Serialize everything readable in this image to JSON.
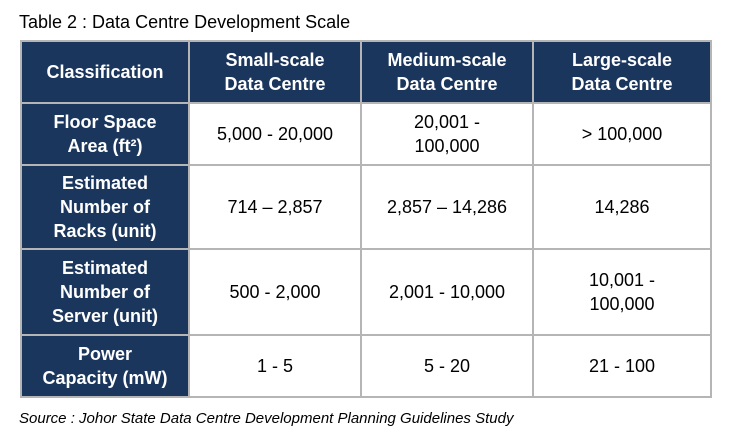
{
  "caption": "Table 2 : Data Centre Development Scale",
  "header": {
    "classification": "Classification",
    "small": [
      "Small-scale",
      "Data Centre"
    ],
    "medium": [
      "Medium-scale",
      "Data Centre"
    ],
    "large": [
      "Large-scale",
      "Data Centre"
    ]
  },
  "rows": [
    {
      "label": [
        "Floor Space",
        "Area (ft²)"
      ],
      "small": [
        "5,000 - 20,000"
      ],
      "medium": [
        "20,001 -",
        "100,000"
      ],
      "large": [
        "> 100,000"
      ]
    },
    {
      "label": [
        "Estimated",
        "Number of",
        "Racks (unit)"
      ],
      "small": [
        "714 – 2,857"
      ],
      "medium": [
        "2,857 – 14,286"
      ],
      "large": [
        "14,286"
      ]
    },
    {
      "label": [
        "Estimated",
        "Number of",
        "Server (unit)"
      ],
      "small": [
        "500 - 2,000"
      ],
      "medium": [
        "2,001 - 10,000"
      ],
      "large": [
        "10,001 -",
        "100,000"
      ]
    },
    {
      "label": [
        "Power",
        "Capacity (mW)"
      ],
      "small": [
        "1 - 5"
      ],
      "medium": [
        "5 - 20"
      ],
      "large": [
        "21 - 100"
      ]
    }
  ],
  "source": "Source : Johor State Data Centre Development Planning Guidelines Study",
  "colors": {
    "header_bg": "#1b365d",
    "header_text": "#ffffff",
    "border": "#b5b5b5"
  }
}
